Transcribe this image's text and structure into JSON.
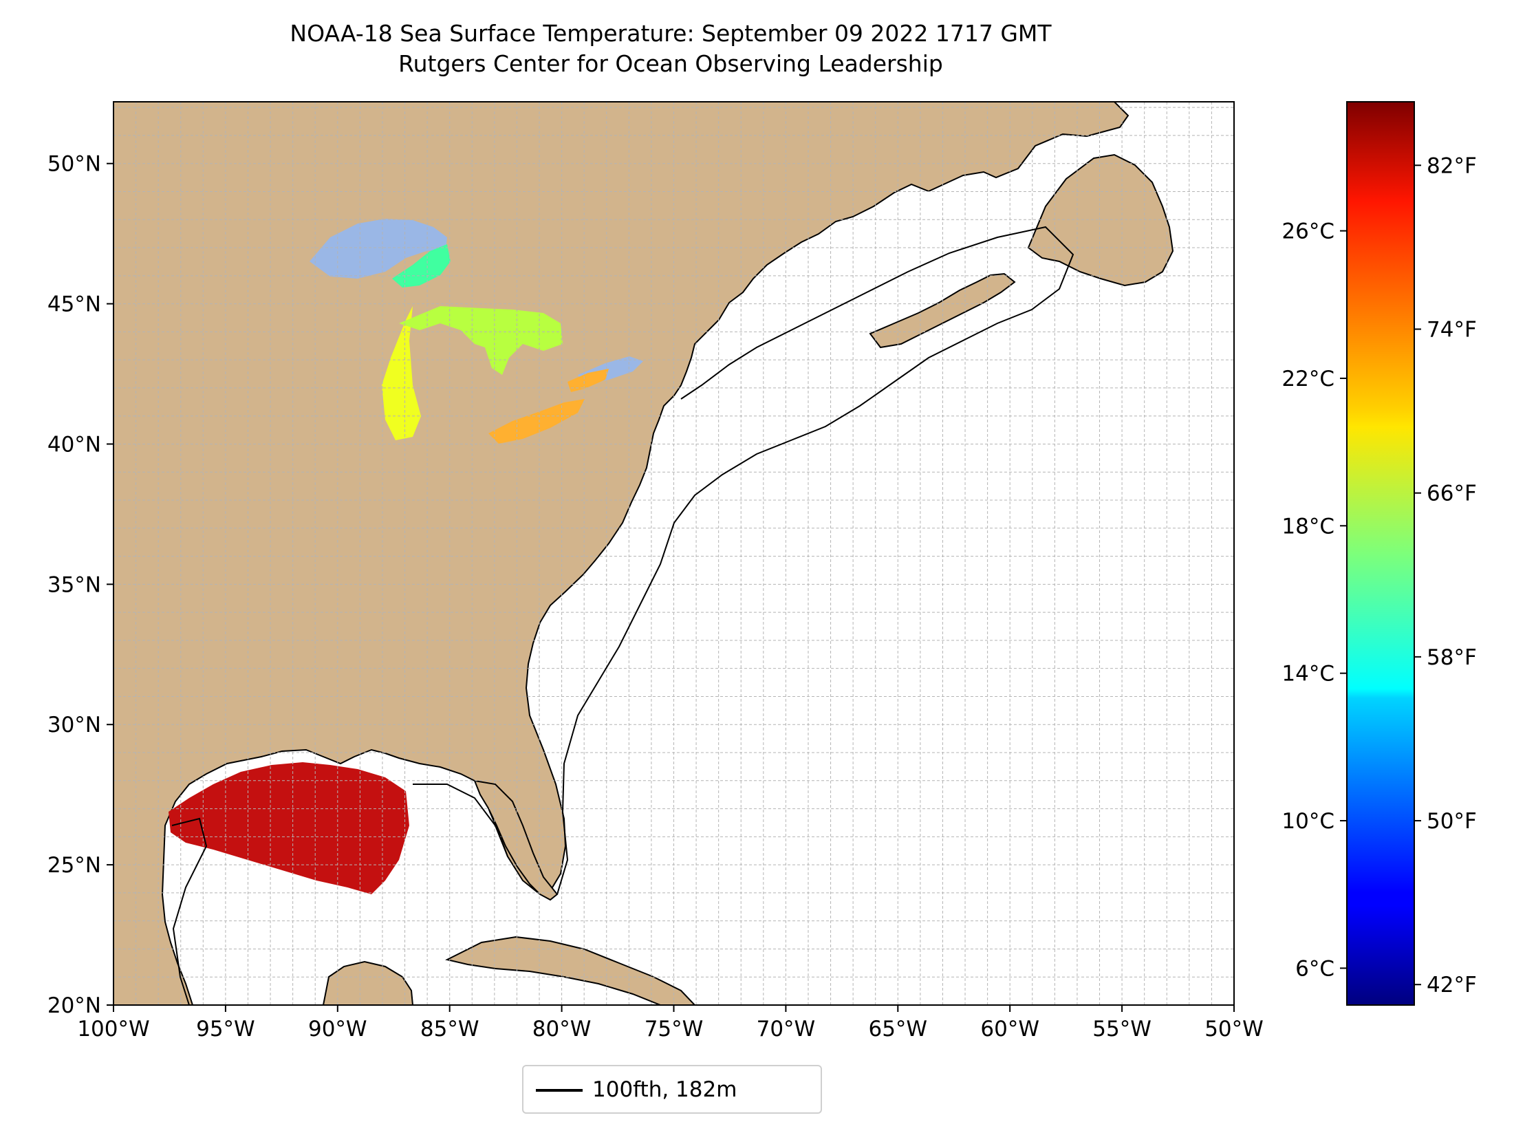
{
  "title": {
    "line1": "NOAA-18 Sea Surface Temperature: September 09 2022 1717 GMT",
    "line2": "Rutgers Center for Ocean Observing Leadership"
  },
  "map": {
    "lon_range": [
      -100,
      -50
    ],
    "lat_range": [
      20,
      52.2
    ],
    "grid": true,
    "lon_ticks": [
      {
        "value": -100,
        "label": "100°W"
      },
      {
        "value": -95,
        "label": "95°W"
      },
      {
        "value": -90,
        "label": "90°W"
      },
      {
        "value": -85,
        "label": "85°W"
      },
      {
        "value": -80,
        "label": "80°W"
      },
      {
        "value": -75,
        "label": "75°W"
      },
      {
        "value": -70,
        "label": "70°W"
      },
      {
        "value": -65,
        "label": "65°W"
      },
      {
        "value": -60,
        "label": "60°W"
      },
      {
        "value": -55,
        "label": "55°W"
      },
      {
        "value": -50,
        "label": "50°W"
      }
    ],
    "lat_ticks": [
      {
        "value": 20,
        "label": "20°N"
      },
      {
        "value": 25,
        "label": "25°N"
      },
      {
        "value": 30,
        "label": "30°N"
      },
      {
        "value": 35,
        "label": "35°N"
      },
      {
        "value": 40,
        "label": "40°N"
      },
      {
        "value": 45,
        "label": "45°N"
      },
      {
        "value": 50,
        "label": "50°N"
      }
    ],
    "colors": {
      "land": "#d2b48c",
      "lakes": "#9ab7e6",
      "ocean": "#ffffff",
      "grid": "#b4b4b4",
      "border": "#000000"
    }
  },
  "colorbar": {
    "colormap": "jet",
    "celsius_range": [
      5,
      29.5
    ],
    "celsius_ticks": [
      {
        "value": 6,
        "label": "6°C"
      },
      {
        "value": 10,
        "label": "10°C"
      },
      {
        "value": 14,
        "label": "14°C"
      },
      {
        "value": 18,
        "label": "18°C"
      },
      {
        "value": 22,
        "label": "22°C"
      },
      {
        "value": 26,
        "label": "26°C"
      }
    ],
    "fahrenheit_ticks": [
      {
        "value": 42,
        "label": "42°F"
      },
      {
        "value": 50,
        "label": "50°F"
      },
      {
        "value": 58,
        "label": "58°F"
      },
      {
        "value": 66,
        "label": "66°F"
      },
      {
        "value": 74,
        "label": "74°F"
      },
      {
        "value": 82,
        "label": "82°F"
      }
    ]
  },
  "legend": {
    "label": "100fth, 182m"
  }
}
